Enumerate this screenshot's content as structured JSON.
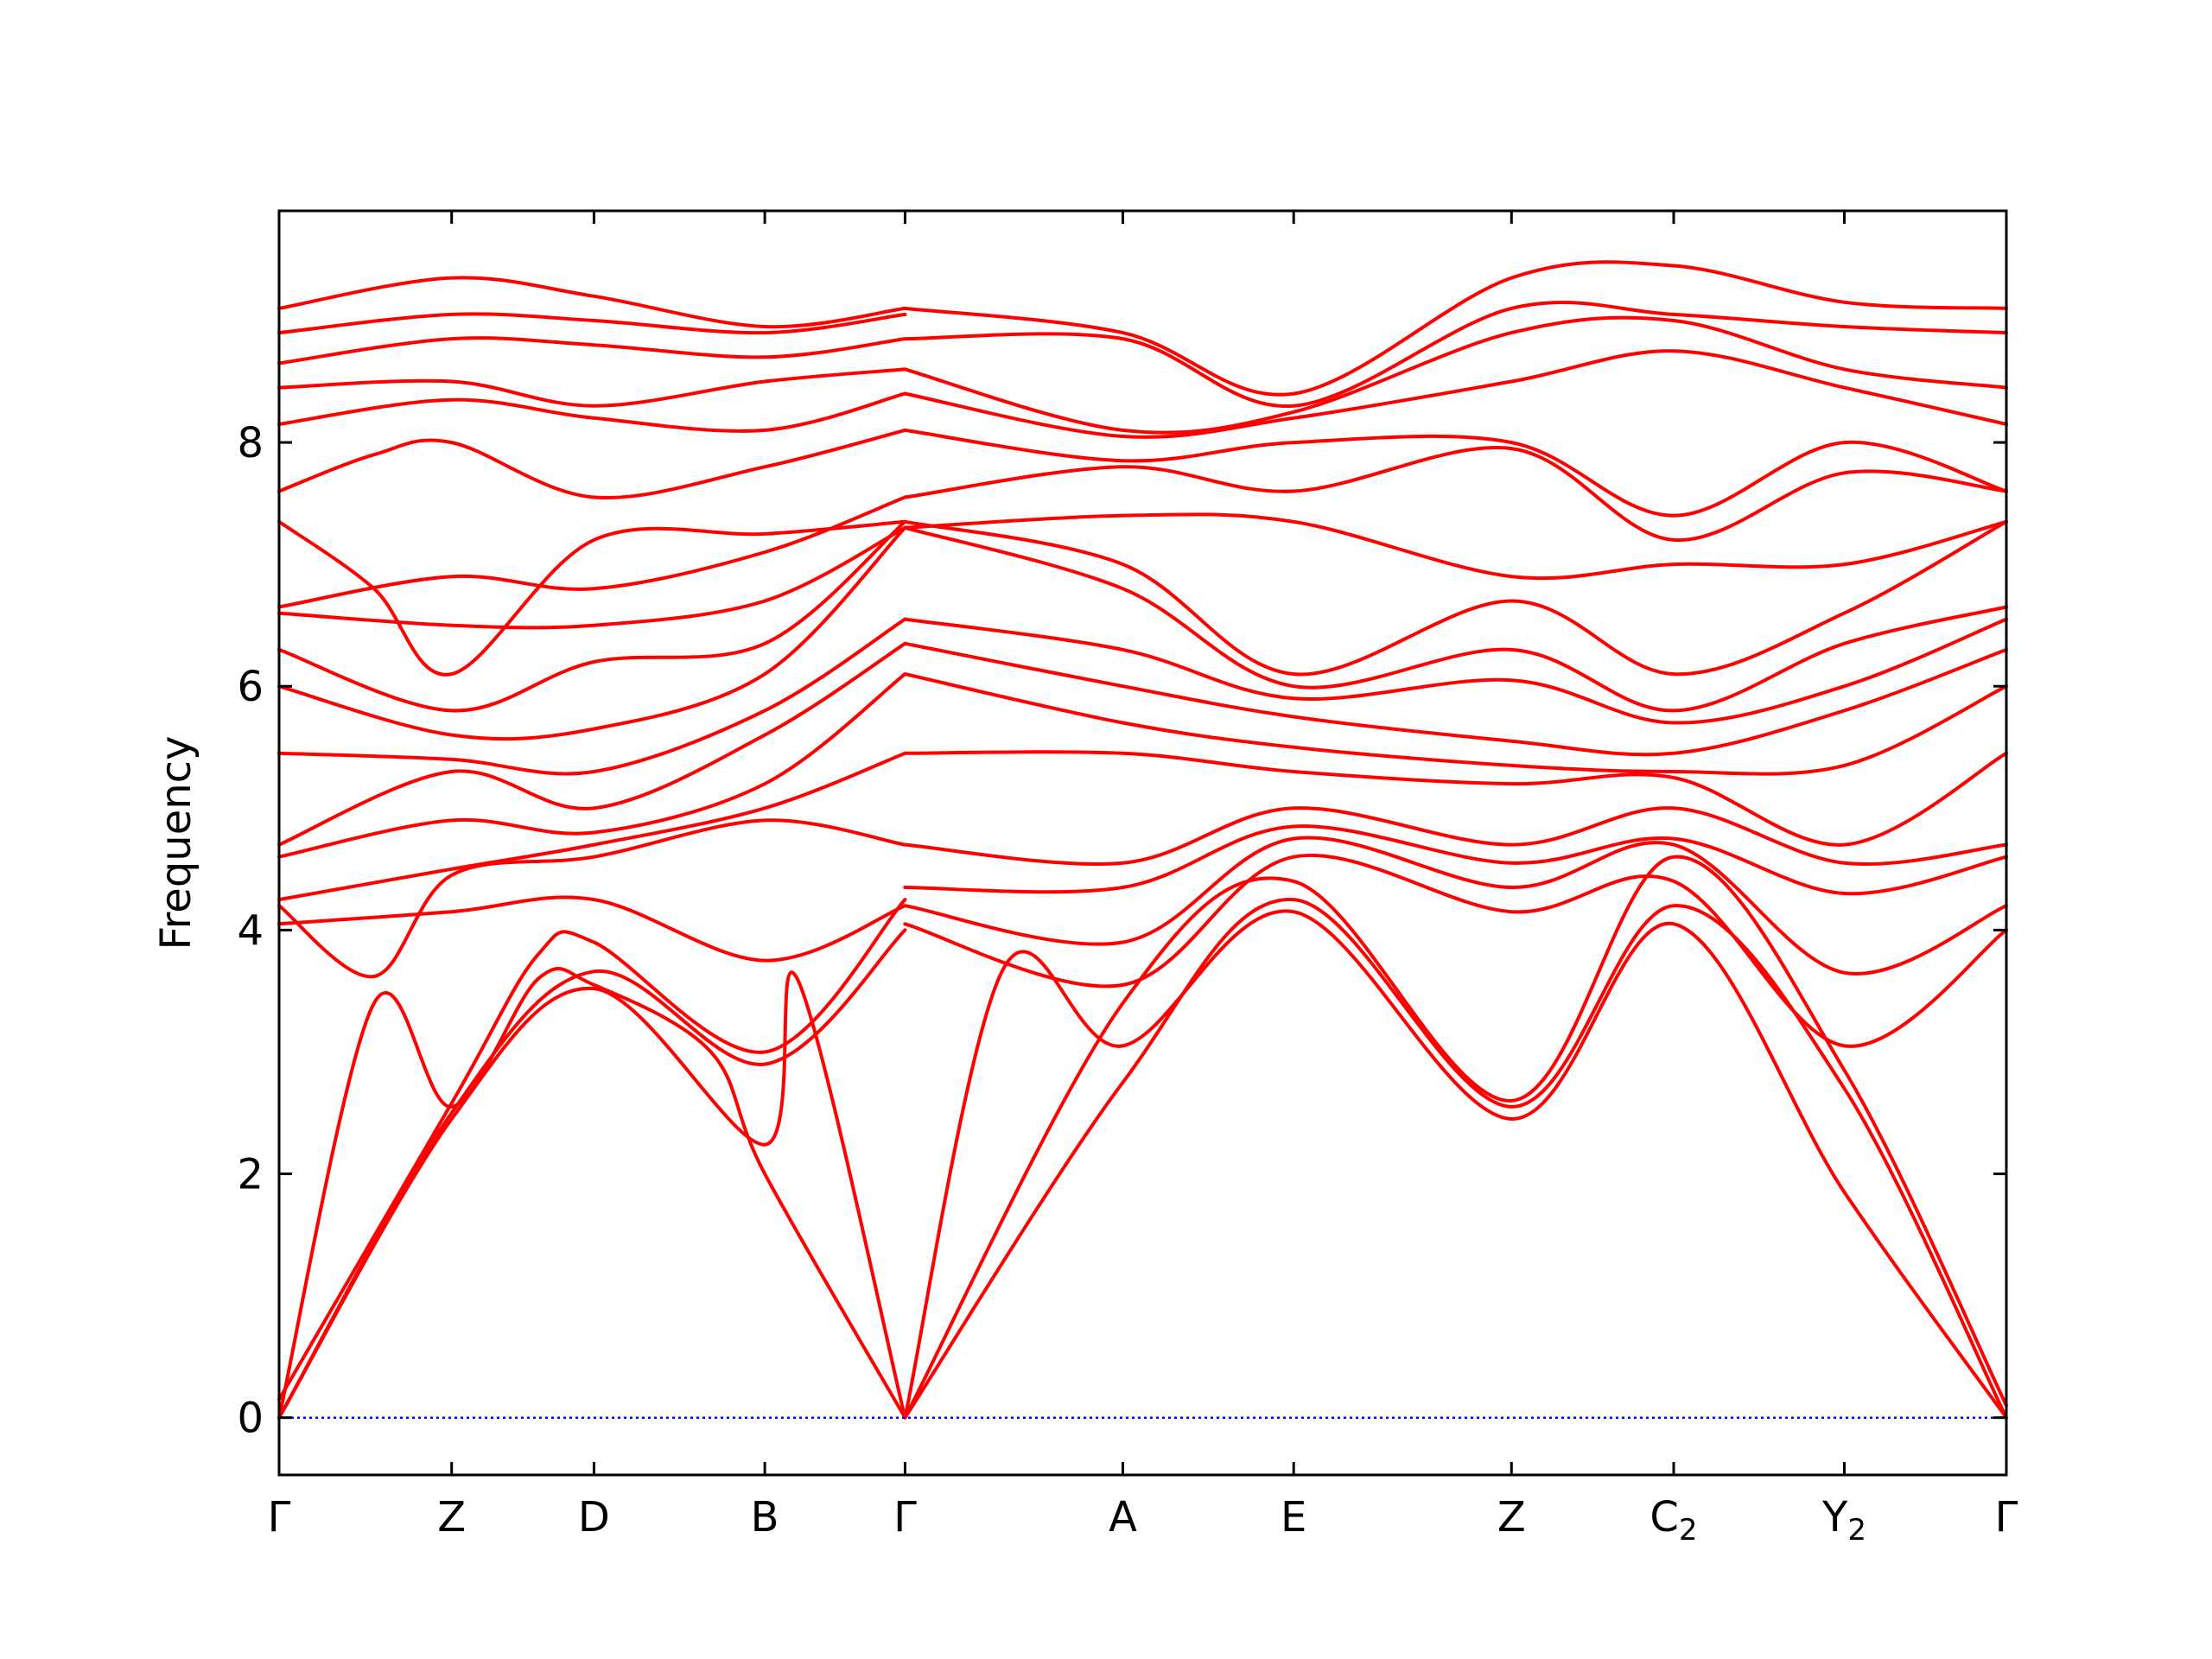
{
  "chart_data": {
    "type": "line",
    "title": "",
    "xlabel": "",
    "ylabel": "Frequency",
    "ylim": [
      -0.47,
      9.9
    ],
    "yticks": [
      0,
      2,
      4,
      6,
      8
    ],
    "grid": false,
    "colors": {
      "bands": "#ff0000",
      "zero_line": "#0000ff",
      "axes": "#000000"
    },
    "xticks": [
      {
        "label": "Γ",
        "sub": "",
        "pos": 0.0
      },
      {
        "label": "Z",
        "sub": "",
        "pos": 0.0999
      },
      {
        "label": "D",
        "sub": "",
        "pos": 0.1823
      },
      {
        "label": "B",
        "sub": "",
        "pos": 0.2812
      },
      {
        "label": "Γ",
        "sub": "",
        "pos": 0.3624
      },
      {
        "label": "A",
        "sub": "",
        "pos": 0.4885
      },
      {
        "label": "E",
        "sub": "",
        "pos": 0.5874
      },
      {
        "label": "Z",
        "sub": "",
        "pos": 0.7135
      },
      {
        "label": "C",
        "sub": "2",
        "pos": 0.8074
      },
      {
        "label": "Y",
        "sub": "2",
        "pos": 0.9062
      },
      {
        "label": "Γ",
        "sub": "",
        "pos": 1.0
      }
    ],
    "zero_line": {
      "y": 0,
      "style": "dotted"
    },
    "series": [
      {
        "points": [
          [
            0,
            0
          ],
          [
            0.055,
            3.4
          ],
          [
            0.0999,
            2.55
          ],
          [
            0.15,
            3.6
          ],
          [
            0.1823,
            3.55
          ],
          [
            0.25,
            3.0
          ],
          [
            0.2812,
            2.0
          ],
          [
            0.3624,
            0
          ]
        ]
      },
      {
        "points": [
          [
            0,
            0
          ],
          [
            0.0999,
            2.45
          ],
          [
            0.1823,
            3.52
          ],
          [
            0.2812,
            2.24
          ],
          [
            0.3,
            3.6
          ],
          [
            0.3624,
            0
          ]
        ]
      },
      {
        "points": [
          [
            0,
            0
          ],
          [
            0.0999,
            2.5
          ],
          [
            0.1823,
            3.66
          ],
          [
            0.2812,
            2.9
          ],
          [
            0.3624,
            4.0
          ]
        ]
      },
      {
        "points": [
          [
            0,
            0.15
          ],
          [
            0.0999,
            2.58
          ],
          [
            0.15,
            3.8
          ],
          [
            0.1823,
            3.9
          ],
          [
            0.2812,
            3.0
          ],
          [
            0.3624,
            4.25
          ]
        ]
      },
      {
        "points": [
          [
            0,
            4.05
          ],
          [
            0.0999,
            4.15
          ],
          [
            0.1823,
            4.25
          ],
          [
            0.2812,
            3.75
          ],
          [
            0.3624,
            4.2
          ]
        ]
      },
      {
        "points": [
          [
            0,
            4.2
          ],
          [
            0.055,
            3.62
          ],
          [
            0.0999,
            4.45
          ],
          [
            0.1823,
            4.6
          ],
          [
            0.2812,
            4.9
          ],
          [
            0.3624,
            4.7
          ]
        ]
      },
      {
        "points": [
          [
            0,
            4.25
          ],
          [
            0.0999,
            4.5
          ],
          [
            0.1823,
            4.7
          ],
          [
            0.2812,
            5.0
          ],
          [
            0.3624,
            5.45
          ]
        ]
      },
      {
        "points": [
          [
            0,
            4.6
          ],
          [
            0.0999,
            4.9
          ],
          [
            0.1823,
            4.8
          ],
          [
            0.2812,
            5.2
          ],
          [
            0.3624,
            6.1
          ]
        ]
      },
      {
        "points": [
          [
            0,
            4.7
          ],
          [
            0.0999,
            5.3
          ],
          [
            0.1823,
            5.0
          ],
          [
            0.2812,
            5.6
          ],
          [
            0.3624,
            6.35
          ]
        ]
      },
      {
        "points": [
          [
            0,
            5.45
          ],
          [
            0.0999,
            5.4
          ],
          [
            0.1823,
            5.3
          ],
          [
            0.2812,
            5.8
          ],
          [
            0.3624,
            6.55
          ]
        ]
      },
      {
        "points": [
          [
            0,
            6.0
          ],
          [
            0.0999,
            5.6
          ],
          [
            0.1823,
            5.65
          ],
          [
            0.2812,
            6.1
          ],
          [
            0.3624,
            7.3
          ]
        ]
      },
      {
        "points": [
          [
            0,
            6.3
          ],
          [
            0.0999,
            5.8
          ],
          [
            0.1823,
            6.2
          ],
          [
            0.2812,
            6.35
          ],
          [
            0.3624,
            7.35
          ]
        ]
      },
      {
        "points": [
          [
            0,
            6.6
          ],
          [
            0.0999,
            6.5
          ],
          [
            0.1823,
            6.5
          ],
          [
            0.2812,
            6.7
          ],
          [
            0.3624,
            7.3
          ]
        ]
      },
      {
        "points": [
          [
            0,
            6.65
          ],
          [
            0.0999,
            6.9
          ],
          [
            0.1823,
            6.8
          ],
          [
            0.2812,
            7.1
          ],
          [
            0.3624,
            7.55
          ]
        ]
      },
      {
        "points": [
          [
            0,
            7.35
          ],
          [
            0.055,
            6.8
          ],
          [
            0.0999,
            6.1
          ],
          [
            0.1823,
            7.2
          ],
          [
            0.2812,
            7.25
          ],
          [
            0.3624,
            7.35
          ]
        ]
      },
      {
        "points": [
          [
            0,
            7.6
          ],
          [
            0.055,
            7.9
          ],
          [
            0.0999,
            8.0
          ],
          [
            0.1823,
            7.55
          ],
          [
            0.2812,
            7.8
          ],
          [
            0.3624,
            8.1
          ]
        ]
      },
      {
        "points": [
          [
            0,
            8.15
          ],
          [
            0.0999,
            8.35
          ],
          [
            0.1823,
            8.2
          ],
          [
            0.2812,
            8.1
          ],
          [
            0.3624,
            8.4
          ]
        ]
      },
      {
        "points": [
          [
            0,
            8.45
          ],
          [
            0.0999,
            8.5
          ],
          [
            0.1823,
            8.3
          ],
          [
            0.2812,
            8.5
          ],
          [
            0.3624,
            8.6
          ]
        ]
      },
      {
        "points": [
          [
            0,
            8.65
          ],
          [
            0.0999,
            8.85
          ],
          [
            0.1823,
            8.8
          ],
          [
            0.2812,
            8.7
          ],
          [
            0.3624,
            8.85
          ]
        ]
      },
      {
        "points": [
          [
            0,
            8.9
          ],
          [
            0.0999,
            9.05
          ],
          [
            0.1823,
            9.0
          ],
          [
            0.2812,
            8.9
          ],
          [
            0.3624,
            9.05
          ]
        ]
      },
      {
        "points": [
          [
            0,
            9.1
          ],
          [
            0.0999,
            9.35
          ],
          [
            0.1823,
            9.2
          ],
          [
            0.2812,
            8.95
          ],
          [
            0.3624,
            9.1
          ]
        ]
      },
      {
        "points": [
          [
            0.3624,
            0
          ],
          [
            0.42,
            3.7
          ],
          [
            0.4885,
            3.05
          ],
          [
            0.5874,
            4.15
          ],
          [
            0.7135,
            2.45
          ],
          [
            0.8074,
            4.05
          ],
          [
            0.9062,
            1.85
          ],
          [
            1.0,
            0
          ]
        ]
      },
      {
        "points": [
          [
            0.3624,
            0
          ],
          [
            0.4885,
            2.75
          ],
          [
            0.5874,
            4.25
          ],
          [
            0.7135,
            2.55
          ],
          [
            0.8074,
            4.2
          ],
          [
            0.9062,
            2.7
          ],
          [
            1.0,
            0
          ]
        ]
      },
      {
        "points": [
          [
            0.3624,
            0
          ],
          [
            0.4885,
            3.4
          ],
          [
            0.5874,
            4.4
          ],
          [
            0.7135,
            2.6
          ],
          [
            0.8074,
            4.6
          ],
          [
            0.9062,
            2.85
          ],
          [
            1.0,
            0.1
          ]
        ]
      },
      {
        "points": [
          [
            0.3624,
            4.05
          ],
          [
            0.4885,
            3.55
          ],
          [
            0.5874,
            4.6
          ],
          [
            0.7135,
            4.15
          ],
          [
            0.8074,
            4.4
          ],
          [
            0.9062,
            3.05
          ],
          [
            1.0,
            4.0
          ]
        ]
      },
      {
        "points": [
          [
            0.3624,
            4.2
          ],
          [
            0.4885,
            3.9
          ],
          [
            0.5874,
            4.75
          ],
          [
            0.7135,
            4.35
          ],
          [
            0.8074,
            4.7
          ],
          [
            0.9062,
            3.65
          ],
          [
            1.0,
            4.2
          ]
        ]
      },
      {
        "points": [
          [
            0.3624,
            4.35
          ],
          [
            0.4885,
            4.35
          ],
          [
            0.5874,
            4.85
          ],
          [
            0.7135,
            4.55
          ],
          [
            0.8074,
            4.75
          ],
          [
            0.9062,
            4.3
          ],
          [
            1.0,
            4.6
          ]
        ]
      },
      {
        "points": [
          [
            0.3624,
            4.7
          ],
          [
            0.4885,
            4.55
          ],
          [
            0.5874,
            5.0
          ],
          [
            0.7135,
            4.7
          ],
          [
            0.8074,
            5.0
          ],
          [
            0.9062,
            4.55
          ],
          [
            1.0,
            4.7
          ]
        ]
      },
      {
        "points": [
          [
            0.3624,
            5.45
          ],
          [
            0.4885,
            5.45
          ],
          [
            0.5874,
            5.3
          ],
          [
            0.7135,
            5.2
          ],
          [
            0.8074,
            5.25
          ],
          [
            0.9062,
            4.7
          ],
          [
            1.0,
            5.45
          ]
        ]
      },
      {
        "points": [
          [
            0.3624,
            6.1
          ],
          [
            0.4885,
            5.7
          ],
          [
            0.5874,
            5.5
          ],
          [
            0.7135,
            5.35
          ],
          [
            0.8074,
            5.3
          ],
          [
            0.9062,
            5.35
          ],
          [
            1.0,
            6.0
          ]
        ]
      },
      {
        "points": [
          [
            0.3624,
            6.35
          ],
          [
            0.4885,
            6.0
          ],
          [
            0.5874,
            5.75
          ],
          [
            0.7135,
            5.55
          ],
          [
            0.8074,
            5.45
          ],
          [
            0.9062,
            5.8
          ],
          [
            1.0,
            6.3
          ]
        ]
      },
      {
        "points": [
          [
            0.3624,
            6.55
          ],
          [
            0.4885,
            6.3
          ],
          [
            0.5874,
            5.9
          ],
          [
            0.7135,
            6.05
          ],
          [
            0.8074,
            5.7
          ],
          [
            0.9062,
            6.0
          ],
          [
            1.0,
            6.55
          ]
        ]
      },
      {
        "points": [
          [
            0.3624,
            7.3
          ],
          [
            0.4885,
            6.8
          ],
          [
            0.5874,
            6.0
          ],
          [
            0.7135,
            6.3
          ],
          [
            0.8074,
            5.8
          ],
          [
            0.9062,
            6.35
          ],
          [
            1.0,
            6.65
          ]
        ]
      },
      {
        "points": [
          [
            0.3624,
            7.35
          ],
          [
            0.4885,
            7.0
          ],
          [
            0.5874,
            6.1
          ],
          [
            0.7135,
            6.7
          ],
          [
            0.8074,
            6.1
          ],
          [
            0.9062,
            6.6
          ],
          [
            1.0,
            7.35
          ]
        ]
      },
      {
        "points": [
          [
            0.3624,
            7.3
          ],
          [
            0.4885,
            7.4
          ],
          [
            0.5874,
            7.35
          ],
          [
            0.7135,
            6.9
          ],
          [
            0.8074,
            7.0
          ],
          [
            0.9062,
            7.0
          ],
          [
            1.0,
            7.35
          ]
        ]
      },
      {
        "points": [
          [
            0.3624,
            7.55
          ],
          [
            0.4885,
            7.8
          ],
          [
            0.5874,
            7.6
          ],
          [
            0.7135,
            7.95
          ],
          [
            0.8074,
            7.2
          ],
          [
            0.9062,
            7.75
          ],
          [
            1.0,
            7.6
          ]
        ]
      },
      {
        "points": [
          [
            0.3624,
            8.1
          ],
          [
            0.4885,
            7.85
          ],
          [
            0.5874,
            8.0
          ],
          [
            0.7135,
            8.0
          ],
          [
            0.8074,
            7.4
          ],
          [
            0.9062,
            8.0
          ],
          [
            1.0,
            7.6
          ]
        ]
      },
      {
        "points": [
          [
            0.3624,
            8.4
          ],
          [
            0.4885,
            8.05
          ],
          [
            0.5874,
            8.2
          ],
          [
            0.7135,
            8.5
          ],
          [
            0.8074,
            8.75
          ],
          [
            0.9062,
            8.45
          ],
          [
            1.0,
            8.15
          ]
        ]
      },
      {
        "points": [
          [
            0.3624,
            8.6
          ],
          [
            0.4885,
            8.1
          ],
          [
            0.5874,
            8.25
          ],
          [
            0.7135,
            8.9
          ],
          [
            0.8074,
            9.0
          ],
          [
            0.9062,
            8.6
          ],
          [
            1.0,
            8.45
          ]
        ]
      },
      {
        "points": [
          [
            0.3624,
            8.85
          ],
          [
            0.4885,
            8.85
          ],
          [
            0.5874,
            8.3
          ],
          [
            0.7135,
            9.1
          ],
          [
            0.8074,
            9.05
          ],
          [
            0.9062,
            8.95
          ],
          [
            1.0,
            8.9
          ]
        ]
      },
      {
        "points": [
          [
            0.3624,
            9.1
          ],
          [
            0.4885,
            8.9
          ],
          [
            0.5874,
            8.4
          ],
          [
            0.7135,
            9.35
          ],
          [
            0.8074,
            9.45
          ],
          [
            0.9062,
            9.15
          ],
          [
            1.0,
            9.1
          ]
        ]
      }
    ]
  }
}
